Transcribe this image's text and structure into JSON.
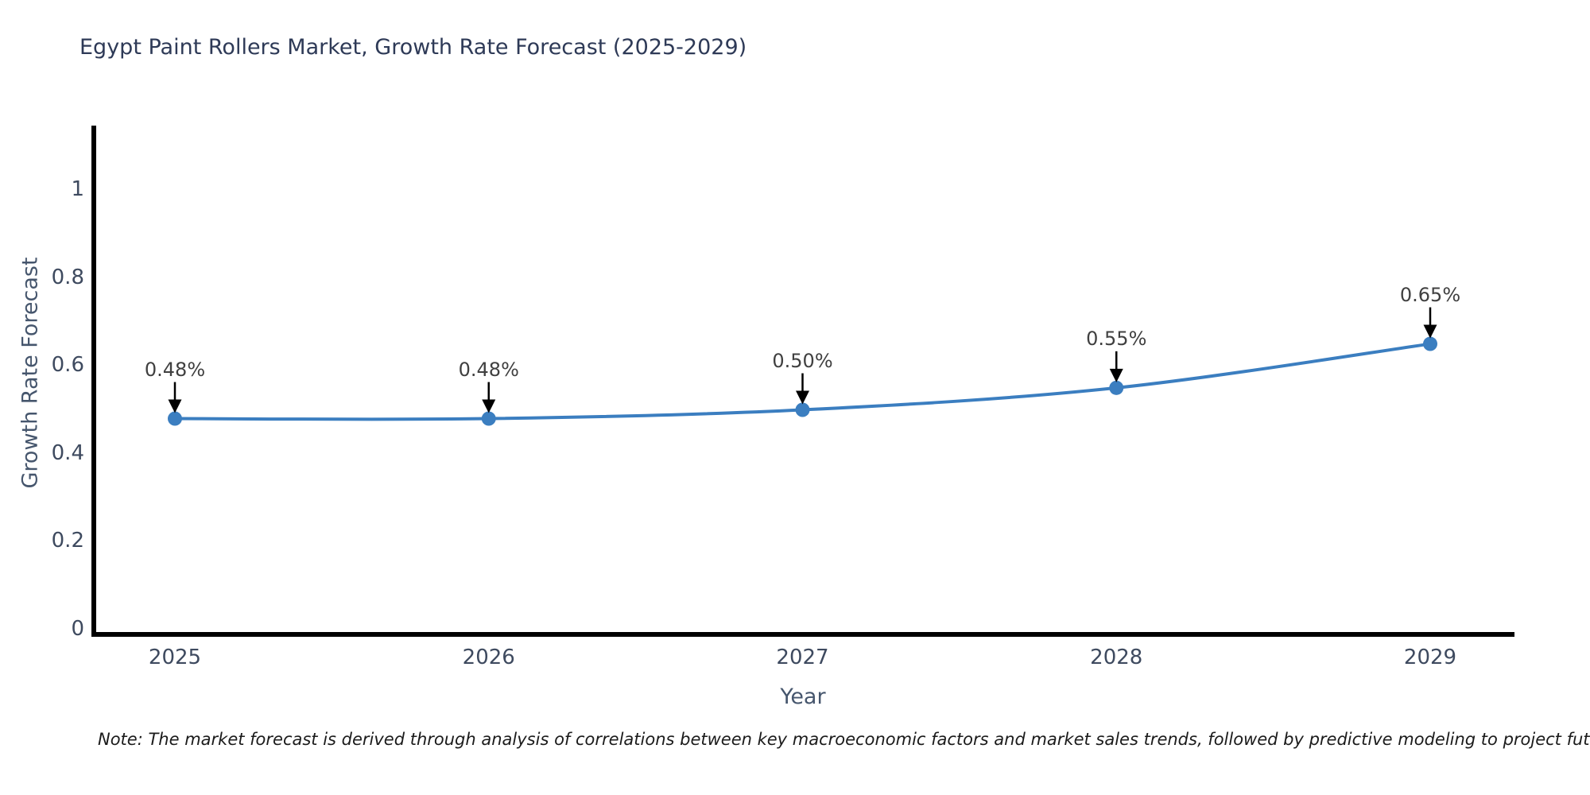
{
  "title": "Egypt Paint Rollers Market, Growth Rate Forecast (2025-2029)",
  "note": "Note: The market forecast is derived through analysis of correlations between key macroeconomic factors and market sales trends, followed by predictive modeling to project future sales",
  "chart_data": {
    "type": "line",
    "title": "Egypt Paint Rollers Market, Growth Rate Forecast (2025-2029)",
    "xlabel": "Year",
    "ylabel": "Growth Rate Forecast",
    "categories": [
      "2025",
      "2026",
      "2027",
      "2028",
      "2029"
    ],
    "x": [
      2025,
      2026,
      2027,
      2028,
      2029
    ],
    "values": [
      0.48,
      0.48,
      0.5,
      0.55,
      0.65
    ],
    "point_labels": [
      "0.48%",
      "0.48%",
      "0.50%",
      "0.55%",
      "0.65%"
    ],
    "ytick_labels": [
      "0",
      "0.2",
      "0.4",
      "0.6",
      "0.8",
      "1"
    ],
    "ytick_values": [
      0,
      0.2,
      0.4,
      0.6,
      0.8,
      1
    ],
    "ylim": [
      0,
      1.15
    ],
    "grid": false,
    "legend_position": "none",
    "annotations_arrow": "down-arrow-to-point",
    "colors": {
      "line": "#3b7ec0",
      "marker": "#3b7ec0",
      "axis": "#000000",
      "arrow": "#000000",
      "title_text": "#2e3a57",
      "tick_text": "#3e4a5f",
      "axis_title_text": "#46566d",
      "annotation_text": "#404040",
      "note_text": "#1b1b1b",
      "background": "#ffffff"
    }
  }
}
